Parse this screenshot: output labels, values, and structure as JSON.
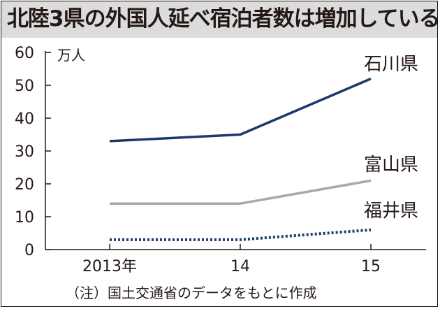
{
  "title": "北陸3県の外国人延べ宿泊者数は増加している",
  "note": "（注）国土交通省のデータをもとに作成",
  "colors": {
    "axis": "#231815",
    "title_band": "#dcdcdc"
  },
  "chart_data": {
    "type": "line",
    "title": "北陸3県の外国人延べ宿泊者数は増加している",
    "ylabel": "万人",
    "xlabel": "",
    "categories": [
      "2013年",
      "14",
      "15"
    ],
    "ylim": [
      0,
      60
    ],
    "yticks": [
      0,
      10,
      20,
      30,
      40,
      50,
      60
    ],
    "grid": false,
    "legend": "direct labels at line ends",
    "series": [
      {
        "name": "石川県",
        "values": [
          33,
          35,
          52
        ],
        "color": "#1b3a6b",
        "style": "solid"
      },
      {
        "name": "富山県",
        "values": [
          14,
          14,
          21
        ],
        "color": "#a9a9a9",
        "style": "solid"
      },
      {
        "name": "福井県",
        "values": [
          3,
          3,
          6
        ],
        "color": "#1b3a6b",
        "style": "dotted"
      }
    ]
  }
}
